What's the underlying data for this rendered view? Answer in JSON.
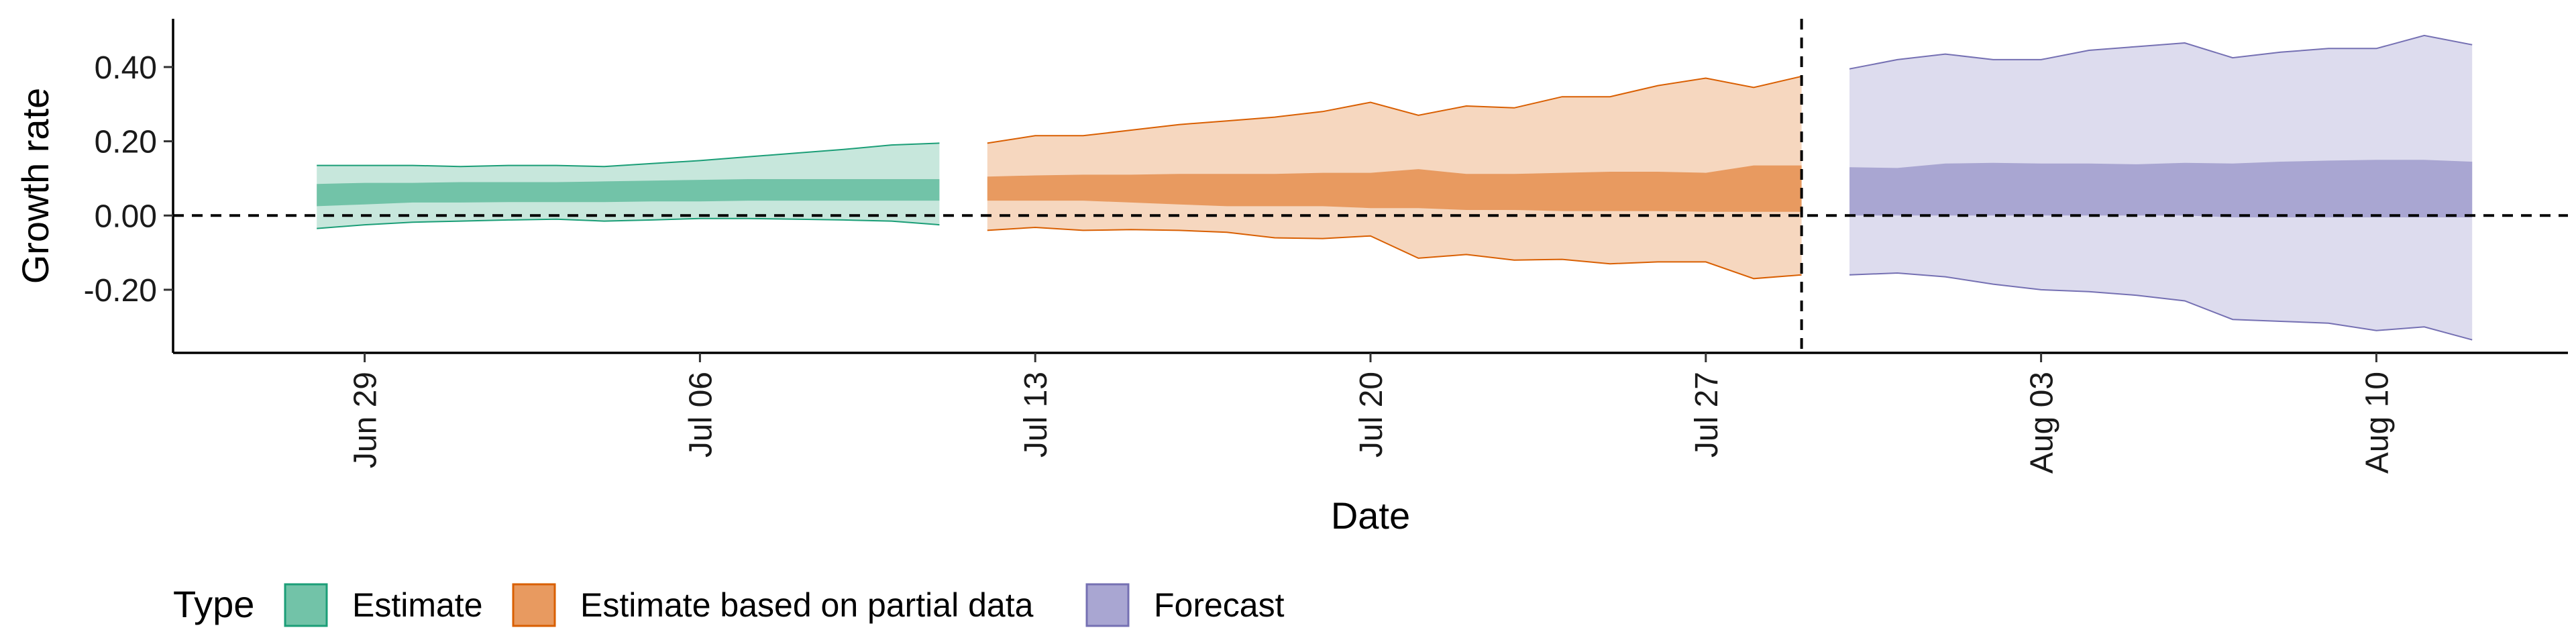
{
  "chart_data": {
    "type": "area",
    "xlabel": "Date",
    "ylabel": "Growth rate",
    "x_tick_labels": [
      "Jun 29",
      "Jul 06",
      "Jul 13",
      "Jul 20",
      "Jul 27",
      "Aug 03",
      "Aug 10"
    ],
    "x_tick_dates": [
      "2020-06-29",
      "2020-07-06",
      "2020-07-13",
      "2020-07-20",
      "2020-07-27",
      "2020-08-03",
      "2020-08-10"
    ],
    "y_tick_labels": [
      "-0.20",
      "0.00",
      "0.20",
      "0.40"
    ],
    "y_tick_values": [
      -0.2,
      0.0,
      0.2,
      0.4
    ],
    "xlim": [
      "2020-06-25",
      "2020-08-14"
    ],
    "ylim": [
      -0.37,
      0.53
    ],
    "reference_lines": {
      "horizontal_y": 0.0,
      "vertical_date": "2020-07-29"
    },
    "legend_title": "Type",
    "legend_position": "bottom-left",
    "series": [
      {
        "name": "Estimate",
        "color": "#66c2a5",
        "fill": "#72c3a8",
        "stroke": "#1b9e77",
        "x": [
          "2020-06-28",
          "2020-06-29",
          "2020-06-30",
          "2020-07-01",
          "2020-07-02",
          "2020-07-03",
          "2020-07-04",
          "2020-07-05",
          "2020-07-06",
          "2020-07-07",
          "2020-07-08",
          "2020-07-09",
          "2020-07-10",
          "2020-07-11"
        ],
        "outer_lower": [
          -0.035,
          -0.025,
          -0.018,
          -0.015,
          -0.012,
          -0.01,
          -0.015,
          -0.012,
          -0.008,
          -0.008,
          -0.01,
          -0.012,
          -0.015,
          -0.025
        ],
        "outer_upper": [
          0.135,
          0.135,
          0.135,
          0.132,
          0.135,
          0.135,
          0.132,
          0.14,
          0.148,
          0.158,
          0.168,
          0.178,
          0.19,
          0.195
        ],
        "inner_lower": [
          0.025,
          0.03,
          0.035,
          0.035,
          0.036,
          0.036,
          0.036,
          0.038,
          0.038,
          0.04,
          0.04,
          0.04,
          0.04,
          0.04
        ],
        "inner_upper": [
          0.085,
          0.088,
          0.088,
          0.09,
          0.09,
          0.09,
          0.092,
          0.094,
          0.096,
          0.098,
          0.098,
          0.098,
          0.098,
          0.098
        ]
      },
      {
        "name": "Estimate based on partial data",
        "color": "#fc8d62",
        "fill": "#e89a60",
        "stroke": "#d95f02",
        "x": [
          "2020-07-12",
          "2020-07-13",
          "2020-07-14",
          "2020-07-15",
          "2020-07-16",
          "2020-07-17",
          "2020-07-18",
          "2020-07-19",
          "2020-07-20",
          "2020-07-21",
          "2020-07-22",
          "2020-07-23",
          "2020-07-24",
          "2020-07-25",
          "2020-07-26",
          "2020-07-27",
          "2020-07-28",
          "2020-07-29"
        ],
        "outer_lower": [
          -0.04,
          -0.032,
          -0.04,
          -0.038,
          -0.04,
          -0.045,
          -0.06,
          -0.062,
          -0.055,
          -0.115,
          -0.105,
          -0.12,
          -0.118,
          -0.13,
          -0.125,
          -0.125,
          -0.17,
          -0.16
        ],
        "outer_upper": [
          0.195,
          0.215,
          0.215,
          0.23,
          0.245,
          0.255,
          0.265,
          0.28,
          0.305,
          0.27,
          0.295,
          0.29,
          0.32,
          0.32,
          0.35,
          0.37,
          0.345,
          0.375
        ],
        "inner_lower": [
          0.04,
          0.04,
          0.04,
          0.035,
          0.03,
          0.025,
          0.025,
          0.025,
          0.02,
          0.02,
          0.015,
          0.015,
          0.012,
          0.012,
          0.012,
          0.01,
          0.01,
          0.01
        ],
        "inner_upper": [
          0.105,
          0.108,
          0.11,
          0.11,
          0.112,
          0.112,
          0.112,
          0.115,
          0.115,
          0.125,
          0.112,
          0.112,
          0.115,
          0.118,
          0.118,
          0.115,
          0.135,
          0.135
        ]
      },
      {
        "name": "Forecast",
        "color": "#8da0cb",
        "fill": "#a9a6d2",
        "stroke": "#7570b3",
        "band_fill": "#dddcee",
        "x": [
          "2020-07-30",
          "2020-07-31",
          "2020-08-01",
          "2020-08-02",
          "2020-08-03",
          "2020-08-04",
          "2020-08-05",
          "2020-08-06",
          "2020-08-07",
          "2020-08-08",
          "2020-08-09",
          "2020-08-10",
          "2020-08-11",
          "2020-08-12"
        ],
        "outer_lower": [
          -0.16,
          -0.155,
          -0.165,
          -0.185,
          -0.2,
          -0.205,
          -0.215,
          -0.23,
          -0.28,
          -0.285,
          -0.29,
          -0.31,
          -0.3,
          -0.335
        ],
        "outer_upper": [
          0.395,
          0.42,
          0.435,
          0.42,
          0.42,
          0.445,
          0.455,
          0.465,
          0.425,
          0.44,
          0.45,
          0.45,
          0.485,
          0.46
        ],
        "inner_lower": [
          0.0,
          0.0,
          0.0,
          0.0,
          0.0,
          0.0,
          0.0,
          0.0,
          -0.005,
          -0.005,
          -0.005,
          -0.005,
          -0.005,
          -0.005
        ],
        "inner_upper": [
          0.13,
          0.128,
          0.14,
          0.142,
          0.14,
          0.14,
          0.138,
          0.142,
          0.14,
          0.145,
          0.148,
          0.15,
          0.15,
          0.145
        ]
      }
    ]
  }
}
